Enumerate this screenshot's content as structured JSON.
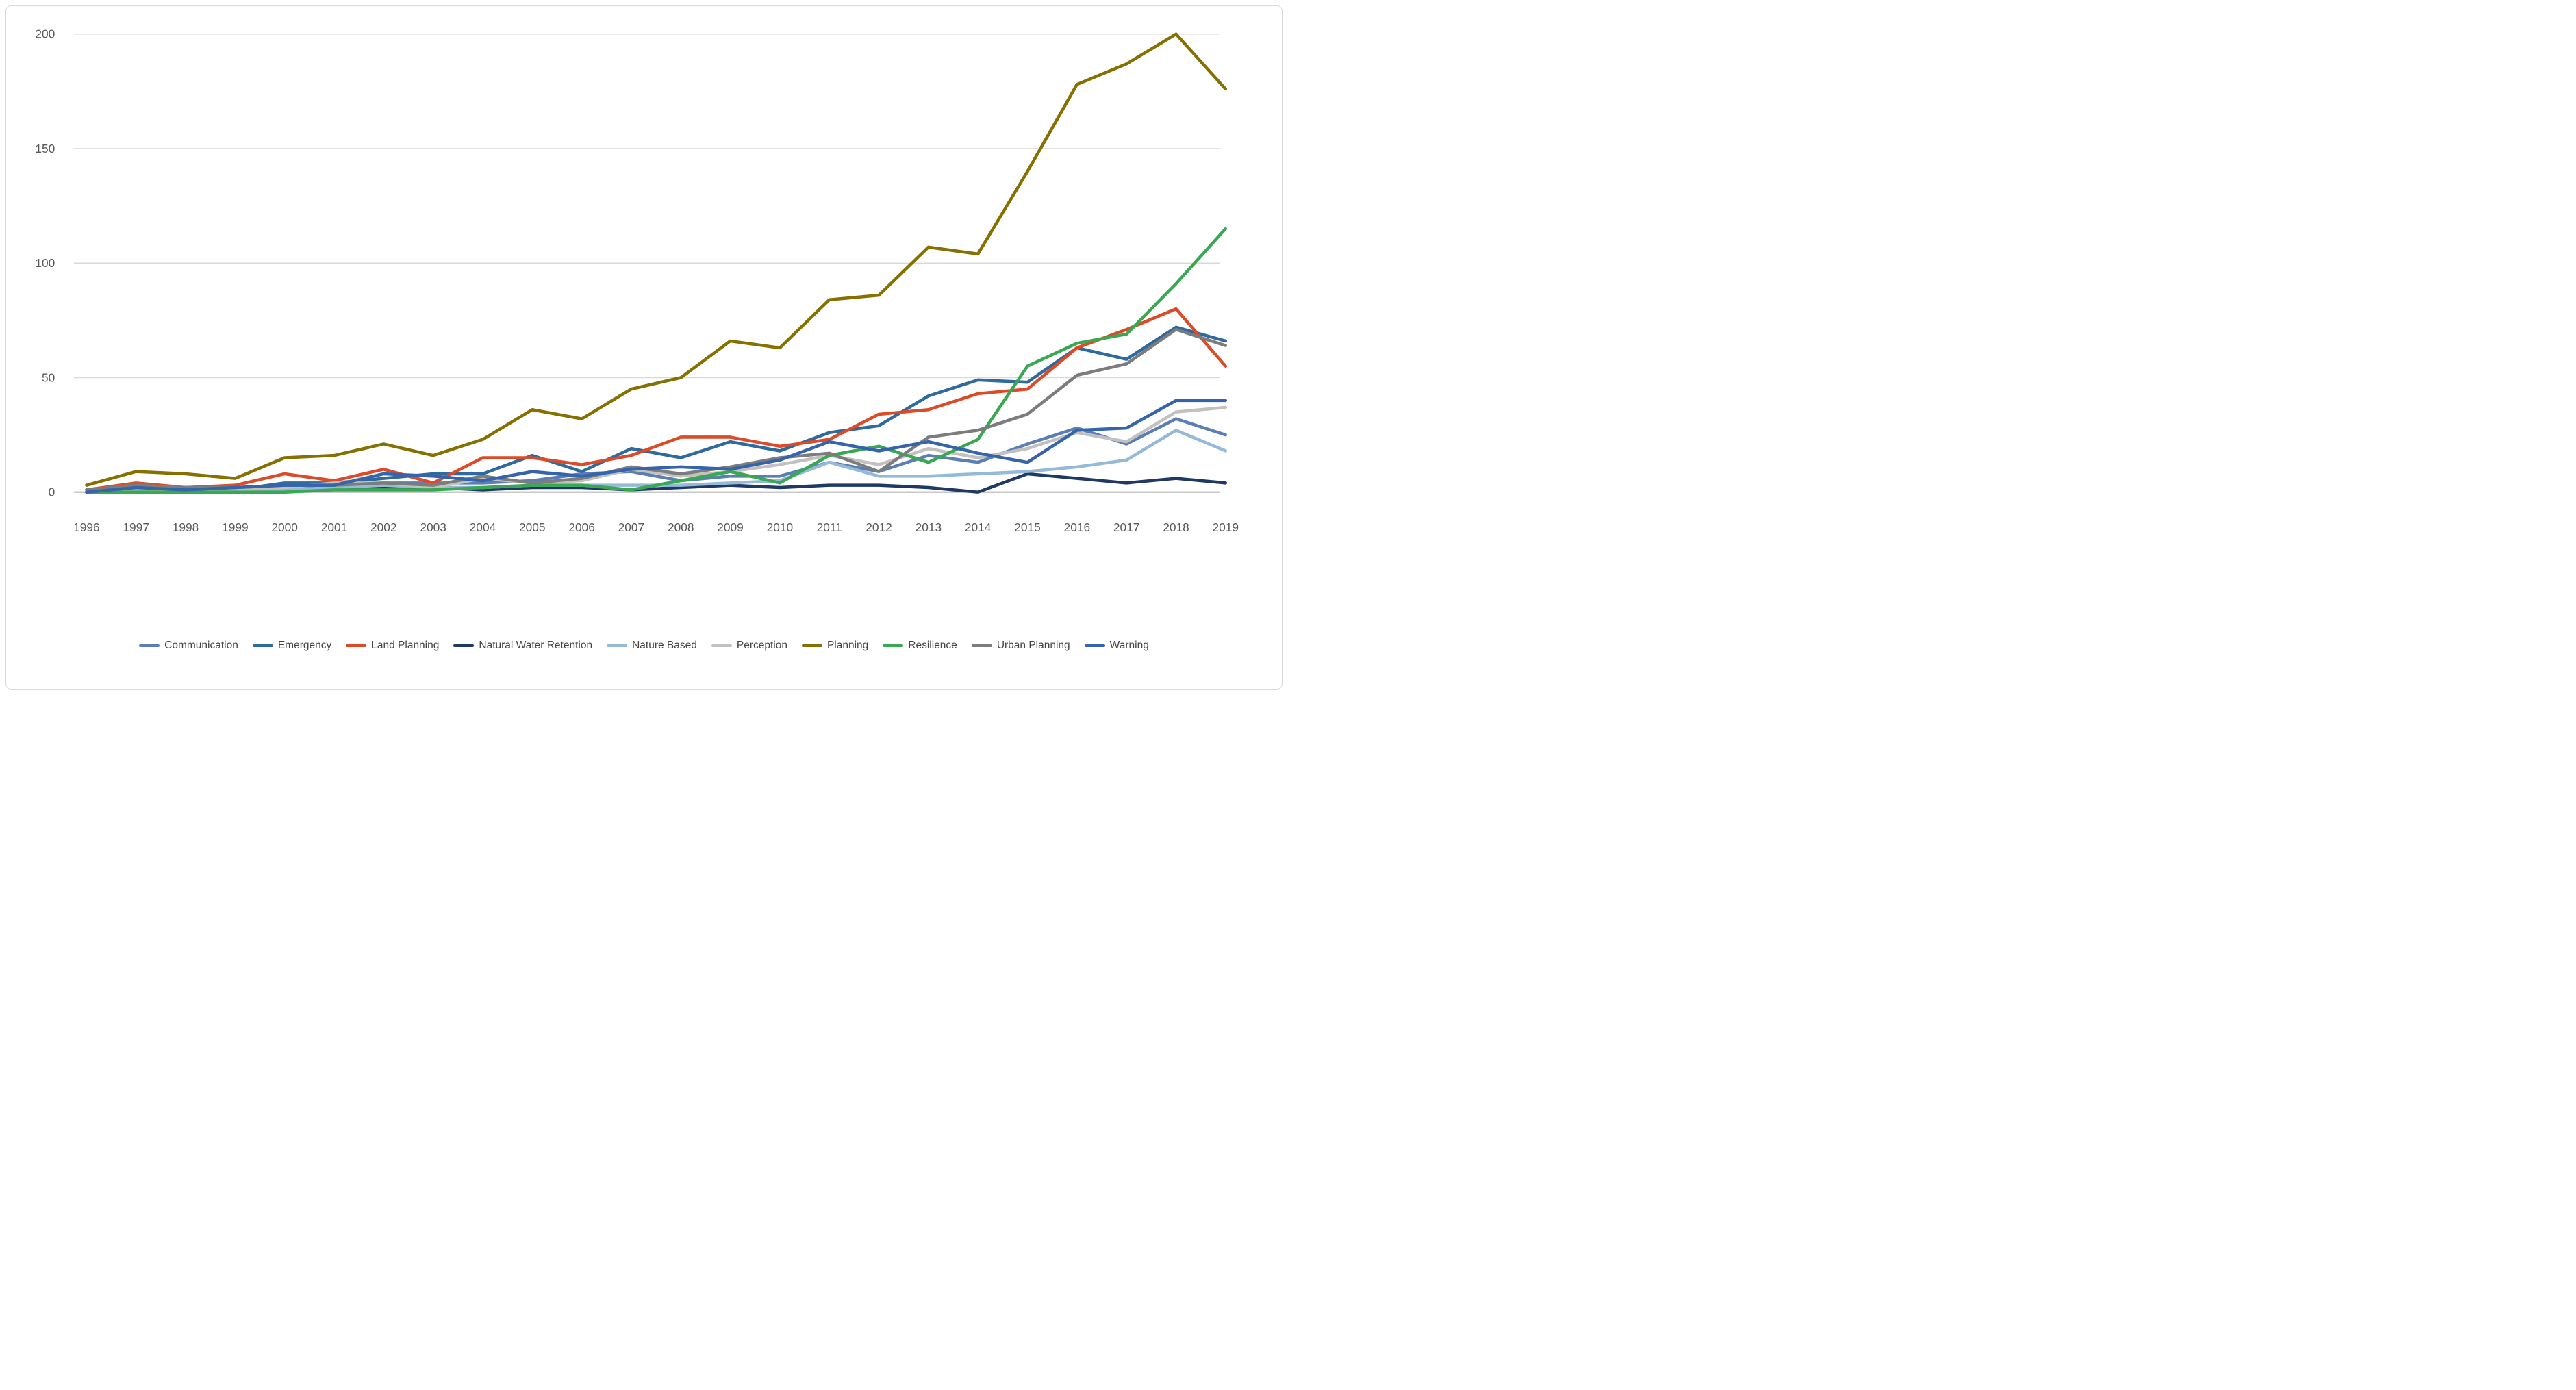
{
  "chart_data": {
    "type": "line",
    "title": "",
    "xlabel": "",
    "ylabel": "",
    "ylim": [
      0,
      200
    ],
    "y_ticks": [
      0,
      50,
      100,
      150,
      200
    ],
    "grid": true,
    "legend_position": "bottom",
    "categories": [
      1996,
      1997,
      1998,
      1999,
      2000,
      2001,
      2002,
      2003,
      2004,
      2005,
      2006,
      2007,
      2008,
      2009,
      2010,
      2011,
      2012,
      2013,
      2014,
      2015,
      2016,
      2017,
      2018,
      2019
    ],
    "series": [
      {
        "name": "Communication",
        "color": "#5B7EB5",
        "values": [
          0,
          1,
          1,
          2,
          2,
          3,
          4,
          4,
          4,
          5,
          8,
          9,
          5,
          7,
          7,
          13,
          9,
          16,
          13,
          21,
          28,
          21,
          32,
          25
        ]
      },
      {
        "name": "Emergency",
        "color": "#2E6A9E",
        "values": [
          0,
          2,
          2,
          1,
          4,
          4,
          6,
          8,
          8,
          16,
          9,
          19,
          15,
          22,
          18,
          26,
          29,
          42,
          49,
          48,
          63,
          58,
          72,
          66
        ]
      },
      {
        "name": "Land Planning",
        "color": "#DC4B27",
        "values": [
          1,
          4,
          2,
          3,
          8,
          5,
          10,
          4,
          15,
          15,
          12,
          16,
          24,
          24,
          20,
          23,
          34,
          36,
          43,
          45,
          63,
          71,
          80,
          55
        ]
      },
      {
        "name": "Natural Water Retention",
        "color": "#1F3864",
        "values": [
          0,
          1,
          1,
          1,
          1,
          2,
          2,
          2,
          1,
          2,
          2,
          1,
          2,
          3,
          2,
          3,
          3,
          2,
          0,
          8,
          6,
          4,
          6,
          4
        ]
      },
      {
        "name": "Nature Based",
        "color": "#94B9D9",
        "values": [
          0,
          0,
          0,
          0,
          1,
          2,
          3,
          2,
          2,
          3,
          3,
          3,
          3,
          4,
          5,
          13,
          7,
          7,
          8,
          9,
          11,
          14,
          27,
          18
        ]
      },
      {
        "name": "Perception",
        "color": "#C2C1C0",
        "values": [
          0,
          1,
          1,
          1,
          2,
          4,
          4,
          2,
          6,
          4,
          5,
          10,
          7,
          9,
          12,
          16,
          12,
          19,
          15,
          19,
          26,
          22,
          35,
          37
        ]
      },
      {
        "name": "Planning",
        "color": "#857000",
        "values": [
          3,
          9,
          8,
          6,
          15,
          16,
          21,
          16,
          23,
          36,
          32,
          45,
          50,
          66,
          63,
          84,
          86,
          107,
          104,
          140,
          178,
          187,
          200,
          176
        ]
      },
      {
        "name": "Resilience",
        "color": "#38A952",
        "values": [
          0,
          0,
          0,
          0,
          0,
          1,
          1,
          1,
          2,
          3,
          3,
          1,
          5,
          9,
          4,
          16,
          20,
          13,
          23,
          55,
          65,
          69,
          91,
          115
        ]
      },
      {
        "name": "Urban Planning",
        "color": "#7C7C7C",
        "values": [
          1,
          3,
          2,
          2,
          3,
          3,
          4,
          3,
          7,
          4,
          6,
          11,
          8,
          11,
          15,
          17,
          9,
          24,
          27,
          34,
          51,
          56,
          71,
          64
        ]
      },
      {
        "name": "Warning",
        "color": "#3564AD",
        "values": [
          0,
          2,
          1,
          2,
          3,
          3,
          8,
          7,
          5,
          9,
          7,
          10,
          11,
          10,
          14,
          22,
          18,
          22,
          17,
          13,
          27,
          28,
          40,
          40
        ]
      }
    ],
    "axis_color": "#b7b7b7",
    "gridline_color": "#d9d9d9"
  }
}
